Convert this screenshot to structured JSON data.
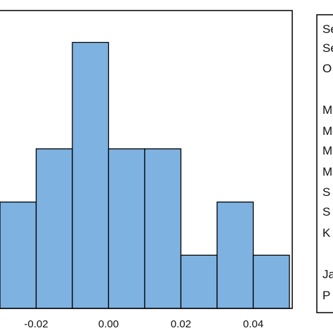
{
  "chart_data": {
    "type": "bar",
    "histogram": true,
    "bin_edges": [
      -0.03,
      -0.02,
      -0.01,
      0.0,
      0.01,
      0.02,
      0.03,
      0.04,
      0.05
    ],
    "values": [
      2,
      3,
      5,
      3,
      3,
      1,
      2,
      1
    ],
    "ylim": [
      0,
      5.6
    ],
    "xlim": [
      -0.03,
      0.05
    ],
    "xticks": [
      "-0.02",
      "0.00",
      "0.02",
      "0.04"
    ],
    "xtick_values": [
      -0.02,
      0.0,
      0.02,
      0.04
    ],
    "bar_color": "#7eb2e1",
    "bar_edge_color": "#000000",
    "grid": false
  },
  "stats_panel": {
    "labels": [
      "Se",
      "Se",
      "O",
      "",
      "M",
      "M",
      "M",
      "M",
      "S",
      "S",
      "K",
      "",
      "Ja",
      "P"
    ]
  }
}
